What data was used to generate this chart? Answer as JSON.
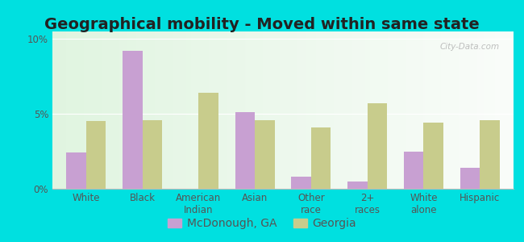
{
  "title": "Geographical mobility - Moved within same state",
  "categories": [
    "White",
    "Black",
    "American\nIndian",
    "Asian",
    "Other\nrace",
    "2+\nraces",
    "White\nalone",
    "Hispanic"
  ],
  "mcdonough_values": [
    2.4,
    9.2,
    0.0,
    5.1,
    0.8,
    0.5,
    2.5,
    1.4
  ],
  "georgia_values": [
    4.5,
    4.6,
    6.4,
    4.6,
    4.1,
    5.7,
    4.4,
    4.6
  ],
  "mcdonough_color": "#c8a0d2",
  "georgia_color": "#c8cc8c",
  "bar_width": 0.35,
  "ylim": [
    0,
    10.5
  ],
  "yticks": [
    0,
    5,
    10
  ],
  "ytick_labels": [
    "0%",
    "5%",
    "10%"
  ],
  "legend_labels": [
    "McDonough, GA",
    "Georgia"
  ],
  "outer_bg_color": "#00e0e0",
  "title_fontsize": 14,
  "tick_fontsize": 8.5,
  "legend_fontsize": 10,
  "watermark_text": "City-Data.com"
}
